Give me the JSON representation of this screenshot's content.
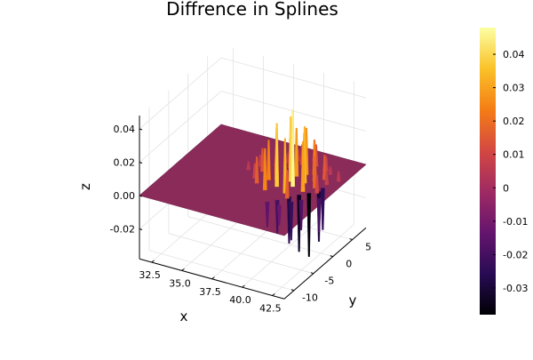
{
  "chart_data": {
    "type": "surface",
    "title": "Diffrence in Splines",
    "xlabel": "x",
    "ylabel": "y",
    "zlabel": "z",
    "x_ticks": [
      "32.5",
      "35.0",
      "37.5",
      "40.0",
      "42.5"
    ],
    "x_tick_values": [
      32.5,
      35.0,
      37.5,
      40.0,
      42.5
    ],
    "y_ticks": [
      "-10",
      "-5",
      "0",
      "5"
    ],
    "y_tick_values": [
      -10,
      -5,
      0,
      5
    ],
    "z_ticks": [
      "0.04",
      "0.02",
      "0.00",
      "-0.02"
    ],
    "z_tick_values": [
      0.04,
      0.02,
      0.0,
      -0.02
    ],
    "xlim": [
      31.5,
      43.5
    ],
    "ylim": [
      -12.5,
      8.5
    ],
    "zlim": [
      -0.038,
      0.048
    ],
    "colormap": "inferno",
    "colorbar_ticks": [
      "0.04",
      "0.03",
      "0.02",
      "0.01",
      "0",
      "-0.01",
      "-0.02",
      "-0.03"
    ],
    "colorbar_tick_values": [
      0.04,
      0.03,
      0.02,
      0.01,
      0.0,
      -0.01,
      -0.02,
      -0.03
    ],
    "colorbar_range": [
      -0.038,
      0.048
    ],
    "grid": true,
    "legend": "none",
    "colors": {
      "flat_surface": "#8a2b5a",
      "cmap_stops": [
        "#000004",
        "#280b54",
        "#65156e",
        "#9f2a63",
        "#d44842",
        "#f57d15",
        "#fac228",
        "#fcffa4"
      ]
    },
    "peaks": [
      {
        "x": 40.5,
        "y": -1.0,
        "z": 0.046
      },
      {
        "x": 40.0,
        "y": 0.0,
        "z": 0.039
      },
      {
        "x": 39.5,
        "y": -2.0,
        "z": 0.038
      },
      {
        "x": 41.0,
        "y": 0.5,
        "z": 0.034
      },
      {
        "x": 40.5,
        "y": -3.0,
        "z": 0.033
      },
      {
        "x": 39.0,
        "y": -0.5,
        "z": 0.031
      },
      {
        "x": 41.5,
        "y": -1.5,
        "z": 0.03
      },
      {
        "x": 40.0,
        "y": 1.5,
        "z": 0.029
      },
      {
        "x": 40.5,
        "y": 2.5,
        "z": 0.028
      },
      {
        "x": 39.5,
        "y": 2.0,
        "z": 0.027
      },
      {
        "x": 39.0,
        "y": -3.5,
        "z": 0.025
      },
      {
        "x": 38.5,
        "y": -1.0,
        "z": 0.024
      },
      {
        "x": 41.5,
        "y": 1.5,
        "z": 0.024
      },
      {
        "x": 40.0,
        "y": 3.5,
        "z": 0.022
      },
      {
        "x": 41.0,
        "y": 3.0,
        "z": 0.021
      },
      {
        "x": 38.5,
        "y": 1.0,
        "z": 0.02
      },
      {
        "x": 42.0,
        "y": 0.0,
        "z": 0.019
      },
      {
        "x": 39.0,
        "y": 3.0,
        "z": 0.018
      },
      {
        "x": 41.0,
        "y": -4.0,
        "z": 0.017
      },
      {
        "x": 38.0,
        "y": -2.5,
        "z": 0.016
      },
      {
        "x": 42.0,
        "y": 2.5,
        "z": 0.015
      },
      {
        "x": 37.5,
        "y": 0.5,
        "z": 0.014
      },
      {
        "x": 40.5,
        "y": 5.0,
        "z": 0.013
      },
      {
        "x": 39.5,
        "y": 4.5,
        "z": 0.012
      },
      {
        "x": 42.5,
        "y": -1.0,
        "z": 0.011
      },
      {
        "x": 38.0,
        "y": 2.5,
        "z": 0.01
      },
      {
        "x": 37.5,
        "y": -1.5,
        "z": 0.009
      },
      {
        "x": 41.5,
        "y": 4.5,
        "z": 0.009
      },
      {
        "x": 42.5,
        "y": 1.5,
        "z": 0.008
      },
      {
        "x": 39.0,
        "y": 5.0,
        "z": 0.007
      },
      {
        "x": 37.0,
        "y": 1.5,
        "z": 0.007
      },
      {
        "x": 43.0,
        "y": 3.0,
        "z": 0.006
      },
      {
        "x": 38.5,
        "y": 4.0,
        "z": 0.006
      },
      {
        "x": 42.0,
        "y": 4.0,
        "z": 0.005
      },
      {
        "x": 36.5,
        "y": 0.0,
        "z": 0.005
      },
      {
        "x": 40.0,
        "y": 6.0,
        "z": 0.005
      }
    ],
    "troughs": [
      {
        "x": 42.0,
        "y": -1.5,
        "z": -0.038
      },
      {
        "x": 41.5,
        "y": -2.5,
        "z": -0.034
      },
      {
        "x": 42.5,
        "y": -0.5,
        "z": -0.03
      },
      {
        "x": 41.0,
        "y": -3.5,
        "z": -0.028
      },
      {
        "x": 42.5,
        "y": 0.5,
        "z": -0.025
      },
      {
        "x": 41.5,
        "y": -4.5,
        "z": -0.023
      },
      {
        "x": 40.5,
        "y": -5.0,
        "z": -0.02
      },
      {
        "x": 43.0,
        "y": -2.0,
        "z": -0.02
      },
      {
        "x": 42.0,
        "y": -3.5,
        "z": -0.018
      },
      {
        "x": 40.0,
        "y": -6.0,
        "z": -0.015
      },
      {
        "x": 41.0,
        "y": -6.0,
        "z": -0.012
      }
    ]
  }
}
